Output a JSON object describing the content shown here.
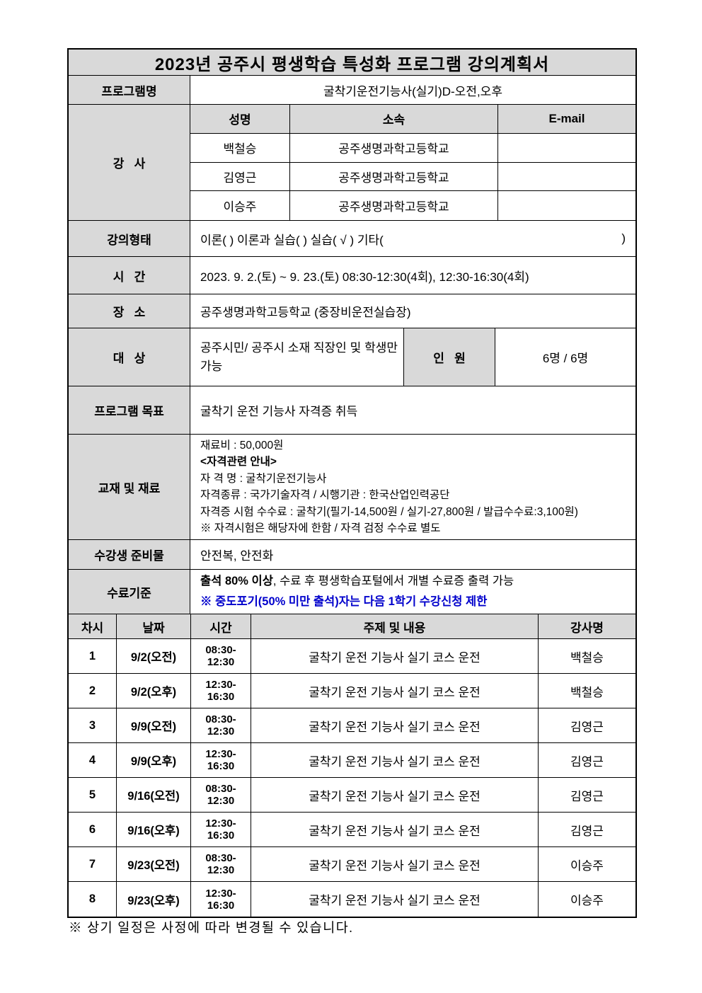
{
  "title": "2023년 공주시 평생학습 특성화 프로그램 강의계획서",
  "program": {
    "label": "프로그램명",
    "value": "굴착기운전기능사(실기)D-오전,오후"
  },
  "instructors": {
    "label": "강   사",
    "columns": {
      "name": "성명",
      "affiliation": "소속",
      "email": "E-mail"
    },
    "rows": [
      {
        "name": "백철승",
        "affiliation": "공주생명과학고등학교",
        "email": ""
      },
      {
        "name": "김영근",
        "affiliation": "공주생명과학고등학교",
        "email": ""
      },
      {
        "name": "이승주",
        "affiliation": "공주생명과학고등학교",
        "email": ""
      }
    ]
  },
  "lecture_type": {
    "label": "강의형태",
    "value": "이론( )   이론과 실습( )    실습( √ )    기타(",
    "close_paren": ")"
  },
  "time": {
    "label": "시   간",
    "value": "2023. 9. 2.(토) ~ 9. 23.(토) 08:30-12:30(4회), 12:30-16:30(4회)"
  },
  "place": {
    "label": "장   소",
    "value": "공주생명과학고등학교 (중장비운전실습장)"
  },
  "target": {
    "label": "대   상",
    "value": "공주시민/ 공주시 소재 직장인 및 학생만 가능"
  },
  "capacity": {
    "label": "인   원",
    "value": "6명 / 6명"
  },
  "goal": {
    "label": "프로그램 목표",
    "value": "굴착기 운전 기능사 자격증 취득"
  },
  "materials": {
    "label": "교재 및 재료",
    "lines": [
      "재료비 : 50,000원",
      "<자격관련 안내>",
      "자 격 명 : 굴착기운전기능사",
      "자격종류 : 국가기술자격 / 시행기관 : 한국산업인력공단",
      "자격증 시험 수수료 : 굴착기(필기-14,500원 / 실기-27,800원 / 발급수수료:3,100원)",
      "※ 자격시험은 해당자에 한함 / 자격 검정 수수료 별도"
    ]
  },
  "supplies": {
    "label": "수강생 준비물",
    "value": "안전복, 안전화"
  },
  "completion": {
    "label": "수료기준",
    "line1_bold": "출석 80% 이상",
    "line1_rest": ", 수료 후 평생학습포털에서 개별 수료증 출력 가능",
    "line2": "※ 중도포기(50% 미만 출석)자는 다음 1학기 수강신청 제한"
  },
  "schedule": {
    "columns": {
      "no": "차시",
      "date": "날짜",
      "time": "시간",
      "topic": "주제 및 내용",
      "instructor": "강사명"
    },
    "rows": [
      {
        "no": "1",
        "date": "9/2(오전)",
        "time1": "08:30-",
        "time2": "12:30",
        "topic": "굴착기 운전 기능사 실기 코스 운전",
        "instructor": "백철승"
      },
      {
        "no": "2",
        "date": "9/2(오후)",
        "time1": "12:30-",
        "time2": "16:30",
        "topic": "굴착기 운전 기능사 실기 코스 운전",
        "instructor": "백철승"
      },
      {
        "no": "3",
        "date": "9/9(오전)",
        "time1": "08:30-",
        "time2": "12:30",
        "topic": "굴착기 운전 기능사 실기 코스 운전",
        "instructor": "김영근"
      },
      {
        "no": "4",
        "date": "9/9(오후)",
        "time1": "12:30-",
        "time2": "16:30",
        "topic": "굴착기 운전 기능사 실기 코스 운전",
        "instructor": "김영근"
      },
      {
        "no": "5",
        "date": "9/16(오전)",
        "time1": "08:30-",
        "time2": "12:30",
        "topic": "굴착기 운전 기능사 실기 코스 운전",
        "instructor": "김영근"
      },
      {
        "no": "6",
        "date": "9/16(오후)",
        "time1": "12:30-",
        "time2": "16:30",
        "topic": "굴착기 운전 기능사 실기 코스 운전",
        "instructor": "김영근"
      },
      {
        "no": "7",
        "date": "9/23(오전)",
        "time1": "08:30-",
        "time2": "12:30",
        "topic": "굴착기 운전 기능사 실기 코스 운전",
        "instructor": "이승주"
      },
      {
        "no": "8",
        "date": "9/23(오후)",
        "time1": "12:30-",
        "time2": "16:30",
        "topic": "굴착기 운전 기능사 실기 코스 운전",
        "instructor": "이승주"
      }
    ]
  },
  "footnote": "※ 상기 일정은 사정에 따라 변경될 수 있습니다.",
  "colors": {
    "header_bg": "#d9d9d9",
    "border": "#000000",
    "note_blue": "#0000cc"
  }
}
